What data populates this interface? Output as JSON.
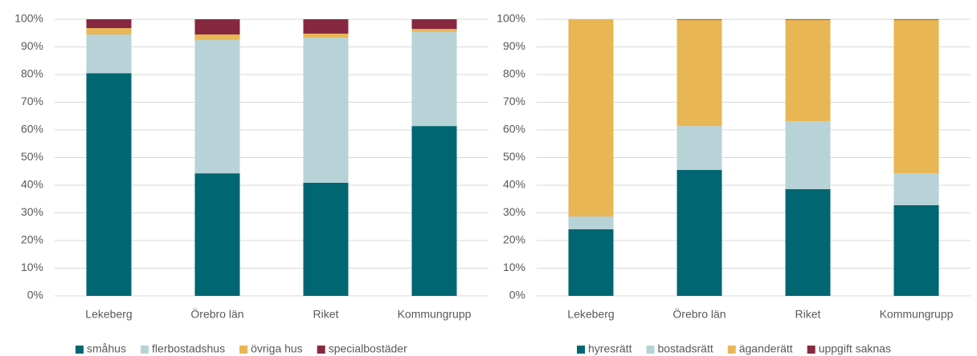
{
  "chart_data": [
    {
      "type": "stacked_bar",
      "categories": [
        "Lekeberg",
        "Örebro län",
        "Riket",
        "Kommungrupp"
      ],
      "series": [
        {
          "name": "småhus",
          "color": "#006672",
          "values": [
            80.5,
            44.3,
            40.9,
            61.4
          ]
        },
        {
          "name": "flerbostadshus",
          "color": "#b7d3d7",
          "values": [
            14,
            48.2,
            52.4,
            34
          ]
        },
        {
          "name": "övriga hus",
          "color": "#e8b653",
          "values": [
            2.3,
            2,
            1.5,
            1.1
          ]
        },
        {
          "name": "specialbostäder",
          "color": "#862840",
          "values": [
            3.2,
            5.5,
            5.2,
            3.5
          ]
        }
      ],
      "ylim": [
        0,
        100
      ],
      "yticks": [
        {
          "value": 0,
          "label": "0%"
        },
        {
          "value": 10,
          "label": "10%"
        },
        {
          "value": 20,
          "label": "20%"
        },
        {
          "value": 30,
          "label": "30%"
        },
        {
          "value": 40,
          "label": "40%"
        },
        {
          "value": 50,
          "label": "50%"
        },
        {
          "value": 60,
          "label": "60%"
        },
        {
          "value": 70,
          "label": "70%"
        },
        {
          "value": 80,
          "label": "80%"
        },
        {
          "value": 90,
          "label": "90%"
        },
        {
          "value": 100,
          "label": "100%"
        }
      ],
      "grid": true,
      "legend": "bottom"
    },
    {
      "type": "stacked_bar",
      "categories": [
        "Lekeberg",
        "Örebro län",
        "Riket",
        "Kommungrupp"
      ],
      "series": [
        {
          "name": "hyresrätt",
          "color": "#006672",
          "values": [
            24.1,
            45.5,
            38.6,
            32.8
          ]
        },
        {
          "name": "bostadsrätt",
          "color": "#b7d3d7",
          "values": [
            4.6,
            15.9,
            24.6,
            11.5
          ]
        },
        {
          "name": "äganderätt",
          "color": "#e8b653",
          "values": [
            71.3,
            38.4,
            36.6,
            55.5
          ]
        },
        {
          "name": "uppgift saknas",
          "color": "#862840",
          "values": [
            0,
            0.2,
            0.2,
            0.2
          ]
        }
      ],
      "ylim": [
        0,
        100
      ],
      "yticks": [
        {
          "value": 0,
          "label": "0%"
        },
        {
          "value": 10,
          "label": "10%"
        },
        {
          "value": 20,
          "label": "20%"
        },
        {
          "value": 30,
          "label": "30%"
        },
        {
          "value": 40,
          "label": "40%"
        },
        {
          "value": 50,
          "label": "50%"
        },
        {
          "value": 60,
          "label": "60%"
        },
        {
          "value": 70,
          "label": "70%"
        },
        {
          "value": 80,
          "label": "80%"
        },
        {
          "value": 90,
          "label": "90%"
        },
        {
          "value": 100,
          "label": "100%"
        }
      ],
      "grid": true,
      "legend": "bottom"
    }
  ]
}
